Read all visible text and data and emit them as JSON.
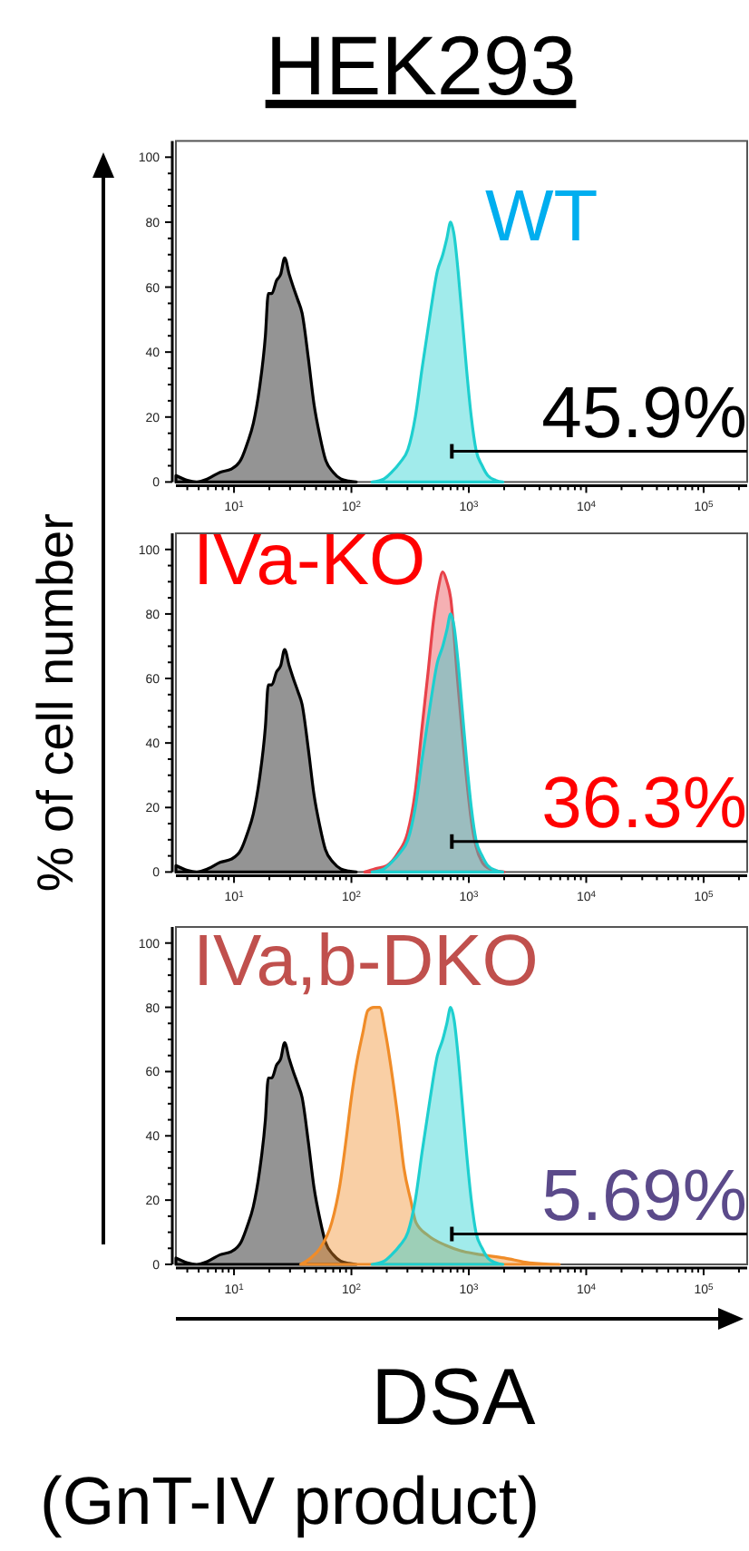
{
  "chart_data": [
    {
      "type": "area",
      "title": "HEK293",
      "subtitle": "WT",
      "xlim": [
        3.2,
        235000
      ],
      "ylim": [
        0,
        105
      ],
      "log": "x",
      "xticks": [
        {
          "value": 4,
          "label": null
        },
        {
          "value": 5,
          "label": null
        },
        {
          "value": 6,
          "label": null
        },
        {
          "value": 7,
          "label": null
        },
        {
          "value": 8,
          "label": null
        },
        {
          "value": 9,
          "label": null
        },
        {
          "value": 10,
          "label": "10$^{1}$"
        },
        {
          "value": 20,
          "label": null
        },
        {
          "value": 30,
          "label": null
        },
        {
          "value": 40,
          "label": null
        },
        {
          "value": 50,
          "label": null
        },
        {
          "value": 60,
          "label": null
        },
        {
          "value": 70,
          "label": null
        },
        {
          "value": 80,
          "label": null
        },
        {
          "value": 90,
          "label": null
        },
        {
          "value": 100,
          "label": "10$^{2}$"
        },
        {
          "value": 200,
          "label": null
        },
        {
          "value": 300,
          "label": null
        },
        {
          "value": 400,
          "label": null
        },
        {
          "value": 500,
          "label": null
        },
        {
          "value": 600,
          "label": null
        },
        {
          "value": 700,
          "label": null
        },
        {
          "value": 800,
          "label": null
        },
        {
          "value": 900,
          "label": null
        },
        {
          "value": 1000,
          "label": "10$^{3}$"
        },
        {
          "value": 2000,
          "label": null
        },
        {
          "value": 3000,
          "label": null
        },
        {
          "value": 4000,
          "label": null
        },
        {
          "value": 5000,
          "label": null
        },
        {
          "value": 6000,
          "label": null
        },
        {
          "value": 7000,
          "label": null
        },
        {
          "value": 8000,
          "label": null
        },
        {
          "value": 9000,
          "label": null
        },
        {
          "value": 10000,
          "label": "10$^{4}$"
        },
        {
          "value": 20000,
          "label": null
        },
        {
          "value": 30000,
          "label": null
        },
        {
          "value": 40000,
          "label": null
        },
        {
          "value": 50000,
          "label": null
        },
        {
          "value": 60000,
          "label": null
        },
        {
          "value": 70000,
          "label": null
        },
        {
          "value": 80000,
          "label": null
        },
        {
          "value": 90000,
          "label": null
        },
        {
          "value": 100000,
          "label": "10$^{5}$"
        },
        {
          "value": 200000,
          "label": null
        }
      ],
      "yticks": [
        0,
        {
          "value": 5,
          "label": null
        },
        {
          "value": 10,
          "label": null
        },
        {
          "value": 15,
          "label": null
        },
        20,
        {
          "value": 25,
          "label": null
        },
        {
          "value": 30,
          "label": null
        },
        {
          "value": 35,
          "label": null
        },
        40,
        {
          "value": 45,
          "label": null
        },
        {
          "value": 50,
          "label": null
        },
        {
          "value": 55,
          "label": null
        },
        60,
        {
          "value": 65,
          "label": null
        },
        {
          "value": 70,
          "label": null
        },
        {
          "value": 75,
          "label": null
        },
        80,
        {
          "value": 85,
          "label": null
        },
        {
          "value": 90,
          "label": null
        },
        {
          "value": 95,
          "label": null
        },
        100
      ],
      "series": [
        {
          "color": "#000000",
          "x": [
            3.2,
            4,
            4.8,
            6,
            7.6,
            9.5,
            11.5,
            13,
            14.6,
            16.5,
            18.5,
            19.6,
            21,
            23,
            25,
            27,
            29.5,
            32,
            35,
            38,
            43,
            48,
            54,
            60,
            70,
            81,
            95,
            110
          ],
          "values": [
            2,
            0.5,
            0,
            1,
            3,
            4,
            7,
            12,
            18,
            29,
            45,
            58,
            58,
            62,
            64,
            69,
            64,
            60,
            56,
            52,
            38,
            24,
            14,
            7,
            3,
            1,
            0.3,
            0
          ]
        },
        {
          "color": "#1ecfcf",
          "x": [
            150,
            190,
            220,
            260,
            303,
            350,
            400,
            470,
            540,
            600,
            650,
            700,
            750,
            810,
            880,
            955,
            1050,
            1150,
            1300,
            1450,
            1700,
            1950
          ],
          "values": [
            0,
            1,
            3,
            6,
            10,
            20,
            35,
            52,
            65,
            70,
            75,
            80,
            76,
            65,
            50,
            35,
            20,
            10,
            5,
            2,
            0.5,
            0
          ]
        }
      ],
      "annotations": [
        "45.9%"
      ]
    },
    {
      "type": "area",
      "subtitle": "IVa-KO",
      "ylabel": "% of cell number",
      "xlim": [
        3.2,
        235000
      ],
      "ylim": [
        0,
        105
      ],
      "log": "x",
      "xticks": [
        {
          "value": 4,
          "label": null
        },
        {
          "value": 5,
          "label": null
        },
        {
          "value": 6,
          "label": null
        },
        {
          "value": 7,
          "label": null
        },
        {
          "value": 8,
          "label": null
        },
        {
          "value": 9,
          "label": null
        },
        {
          "value": 10,
          "label": "10$^{1}$"
        },
        {
          "value": 20,
          "label": null
        },
        {
          "value": 30,
          "label": null
        },
        {
          "value": 40,
          "label": null
        },
        {
          "value": 50,
          "label": null
        },
        {
          "value": 60,
          "label": null
        },
        {
          "value": 70,
          "label": null
        },
        {
          "value": 80,
          "label": null
        },
        {
          "value": 90,
          "label": null
        },
        {
          "value": 100,
          "label": "10$^{2}$"
        },
        {
          "value": 200,
          "label": null
        },
        {
          "value": 300,
          "label": null
        },
        {
          "value": 400,
          "label": null
        },
        {
          "value": 500,
          "label": null
        },
        {
          "value": 600,
          "label": null
        },
        {
          "value": 700,
          "label": null
        },
        {
          "value": 800,
          "label": null
        },
        {
          "value": 900,
          "label": null
        },
        {
          "value": 1000,
          "label": "10$^{3}$"
        },
        {
          "value": 2000,
          "label": null
        },
        {
          "value": 3000,
          "label": null
        },
        {
          "value": 4000,
          "label": null
        },
        {
          "value": 5000,
          "label": null
        },
        {
          "value": 6000,
          "label": null
        },
        {
          "value": 7000,
          "label": null
        },
        {
          "value": 8000,
          "label": null
        },
        {
          "value": 9000,
          "label": null
        },
        {
          "value": 10000,
          "label": "10$^{4}$"
        },
        {
          "value": 20000,
          "label": null
        },
        {
          "value": 30000,
          "label": null
        },
        {
          "value": 40000,
          "label": null
        },
        {
          "value": 50000,
          "label": null
        },
        {
          "value": 60000,
          "label": null
        },
        {
          "value": 70000,
          "label": null
        },
        {
          "value": 80000,
          "label": null
        },
        {
          "value": 90000,
          "label": null
        },
        {
          "value": 100000,
          "label": "10$^{5}$"
        },
        {
          "value": 200000,
          "label": null
        }
      ],
      "yticks": [
        0,
        {
          "value": 5,
          "label": null
        },
        {
          "value": 10,
          "label": null
        },
        {
          "value": 15,
          "label": null
        },
        20,
        {
          "value": 25,
          "label": null
        },
        {
          "value": 30,
          "label": null
        },
        {
          "value": 35,
          "label": null
        },
        40,
        {
          "value": 45,
          "label": null
        },
        {
          "value": 50,
          "label": null
        },
        {
          "value": 55,
          "label": null
        },
        60,
        {
          "value": 65,
          "label": null
        },
        {
          "value": 70,
          "label": null
        },
        {
          "value": 75,
          "label": null
        },
        80,
        {
          "value": 85,
          "label": null
        },
        {
          "value": 90,
          "label": null
        },
        {
          "value": 95,
          "label": null
        },
        100
      ],
      "series": [
        {
          "color": "#000000",
          "x": [
            3.2,
            4,
            4.8,
            6,
            7.6,
            9.5,
            11.5,
            13,
            14.6,
            16.5,
            18.5,
            19.6,
            21,
            23,
            25,
            27,
            29.5,
            32,
            35,
            38,
            43,
            48,
            54,
            60,
            70,
            81,
            95,
            110
          ],
          "values": [
            2,
            0.5,
            0,
            1,
            3,
            4,
            7,
            12,
            18,
            29,
            45,
            58,
            58,
            62,
            64,
            69,
            64,
            60,
            56,
            52,
            38,
            24,
            14,
            7,
            3,
            1,
            0.3,
            0
          ]
        },
        {
          "color": "#e8424a",
          "x": [
            130,
            160,
            200,
            250,
            300,
            350,
            400,
            450,
            500,
            550,
            600,
            650,
            700,
            800,
            950,
            1050,
            1150,
            1300,
            1500,
            2000
          ],
          "values": [
            0,
            1,
            2,
            6,
            12,
            25,
            45,
            62,
            78,
            88,
            93,
            90,
            85,
            60,
            30,
            16,
            8,
            3,
            1,
            0
          ]
        },
        {
          "color": "#1ecfcf",
          "x": [
            150,
            190,
            220,
            260,
            303,
            350,
            400,
            470,
            540,
            600,
            650,
            700,
            750,
            810,
            880,
            955,
            1050,
            1150,
            1300,
            1450,
            1700,
            1950
          ],
          "values": [
            0,
            1,
            3,
            6,
            10,
            20,
            35,
            52,
            65,
            70,
            75,
            80,
            76,
            65,
            50,
            35,
            20,
            10,
            5,
            2,
            0.5,
            0
          ]
        }
      ],
      "annotations": [
        "36.3%"
      ]
    },
    {
      "type": "area",
      "subtitle": "IVa,b-DKO",
      "xlabel": "DSA\n(GnT-IV product)",
      "xlim": [
        3.2,
        235000
      ],
      "ylim": [
        0,
        105
      ],
      "log": "x",
      "xticks": [
        {
          "value": 4,
          "label": null
        },
        {
          "value": 5,
          "label": null
        },
        {
          "value": 6,
          "label": null
        },
        {
          "value": 7,
          "label": null
        },
        {
          "value": 8,
          "label": null
        },
        {
          "value": 9,
          "label": null
        },
        {
          "value": 10,
          "label": "10$^{1}$"
        },
        {
          "value": 20,
          "label": null
        },
        {
          "value": 30,
          "label": null
        },
        {
          "value": 40,
          "label": null
        },
        {
          "value": 50,
          "label": null
        },
        {
          "value": 60,
          "label": null
        },
        {
          "value": 70,
          "label": null
        },
        {
          "value": 80,
          "label": null
        },
        {
          "value": 90,
          "label": null
        },
        {
          "value": 100,
          "label": "10$^{2}$"
        },
        {
          "value": 200,
          "label": null
        },
        {
          "value": 300,
          "label": null
        },
        {
          "value": 400,
          "label": null
        },
        {
          "value": 500,
          "label": null
        },
        {
          "value": 600,
          "label": null
        },
        {
          "value": 700,
          "label": null
        },
        {
          "value": 800,
          "label": null
        },
        {
          "value": 900,
          "label": null
        },
        {
          "value": 1000,
          "label": "10$^{3}$"
        },
        {
          "value": 2000,
          "label": null
        },
        {
          "value": 3000,
          "label": null
        },
        {
          "value": 4000,
          "label": null
        },
        {
          "value": 5000,
          "label": null
        },
        {
          "value": 6000,
          "label": null
        },
        {
          "value": 7000,
          "label": null
        },
        {
          "value": 8000,
          "label": null
        },
        {
          "value": 9000,
          "label": null
        },
        {
          "value": 10000,
          "label": "10$^{4}$"
        },
        {
          "value": 20000,
          "label": null
        },
        {
          "value": 30000,
          "label": null
        },
        {
          "value": 40000,
          "label": null
        },
        {
          "value": 50000,
          "label": null
        },
        {
          "value": 60000,
          "label": null
        },
        {
          "value": 70000,
          "label": null
        },
        {
          "value": 80000,
          "label": null
        },
        {
          "value": 90000,
          "label": null
        },
        {
          "value": 100000,
          "label": "10$^{5}$"
        },
        {
          "value": 200000,
          "label": null
        }
      ],
      "yticks": [
        0,
        {
          "value": 5,
          "label": null
        },
        {
          "value": 10,
          "label": null
        },
        {
          "value": 15,
          "label": null
        },
        20,
        {
          "value": 25,
          "label": null
        },
        {
          "value": 30,
          "label": null
        },
        {
          "value": 35,
          "label": null
        },
        40,
        {
          "value": 45,
          "label": null
        },
        {
          "value": 50,
          "label": null
        },
        {
          "value": 55,
          "label": null
        },
        60,
        {
          "value": 65,
          "label": null
        },
        {
          "value": 70,
          "label": null
        },
        {
          "value": 75,
          "label": null
        },
        80,
        {
          "value": 85,
          "label": null
        },
        {
          "value": 90,
          "label": null
        },
        {
          "value": 95,
          "label": null
        },
        100
      ],
      "series": [
        {
          "color": "#000000",
          "x": [
            3.2,
            4,
            4.8,
            6,
            7.6,
            9.5,
            11.5,
            13,
            14.6,
            16.5,
            18.5,
            19.6,
            21,
            23,
            25,
            27,
            29.5,
            32,
            35,
            38,
            43,
            48,
            54,
            60,
            70,
            81,
            95,
            110
          ],
          "values": [
            2,
            0.5,
            0,
            1,
            3,
            4,
            7,
            12,
            18,
            29,
            45,
            58,
            58,
            62,
            64,
            69,
            64,
            60,
            56,
            52,
            38,
            24,
            14,
            7,
            3,
            1,
            0.3,
            0
          ]
        },
        {
          "color": "#f08c28",
          "x": [
            37,
            45,
            54,
            68,
            80,
            91,
            100,
            110,
            125,
            138,
            155,
            174,
            195,
            220,
            250,
            280,
            320,
            355,
            450,
            630,
            900,
            1280,
            2000,
            3300,
            5900
          ],
          "values": [
            0,
            2,
            5,
            13,
            25,
            40,
            52,
            62,
            72,
            79,
            80,
            80,
            72,
            60,
            45,
            30,
            20,
            13,
            9,
            6,
            4,
            3,
            2,
            0.5,
            0
          ]
        },
        {
          "color": "#1ecfcf",
          "x": [
            150,
            190,
            220,
            260,
            303,
            350,
            400,
            470,
            540,
            600,
            650,
            700,
            750,
            810,
            880,
            955,
            1050,
            1150,
            1300,
            1450,
            1700,
            1950
          ],
          "values": [
            0,
            1,
            3,
            6,
            10,
            20,
            35,
            52,
            65,
            70,
            75,
            80,
            76,
            65,
            50,
            35,
            20,
            10,
            5,
            2,
            0.5,
            0
          ]
        }
      ],
      "annotations": [
        "5.69%"
      ]
    }
  ]
}
